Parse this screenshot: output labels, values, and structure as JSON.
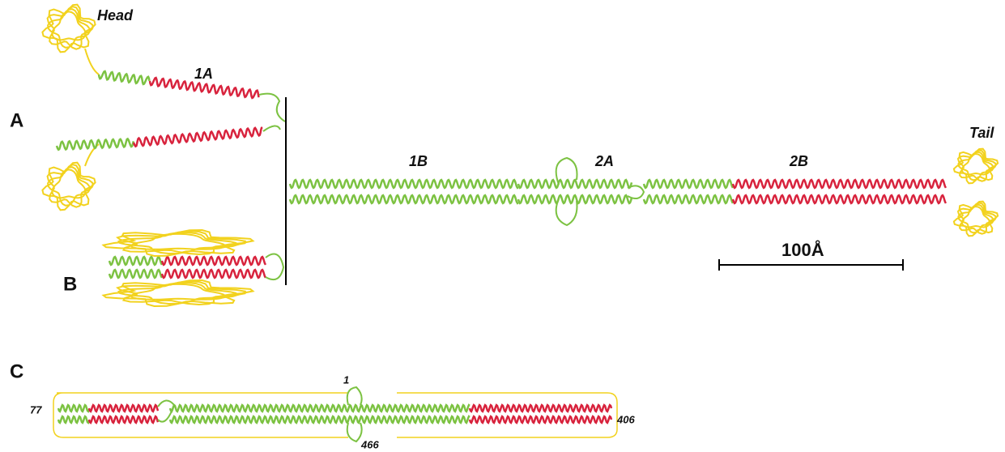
{
  "panel_labels": [
    "A",
    "B",
    "C"
  ],
  "domain_labels": {
    "head": "Head",
    "coil_1a": "1A",
    "coil_1b": "1B",
    "coil_2a": "2A",
    "coil_2b": "2B",
    "tail": "Tail"
  },
  "scale_bar": "100Å",
  "residue_labels": {
    "top": "1",
    "left": "77",
    "right": "406",
    "bottom": "466"
  }
}
